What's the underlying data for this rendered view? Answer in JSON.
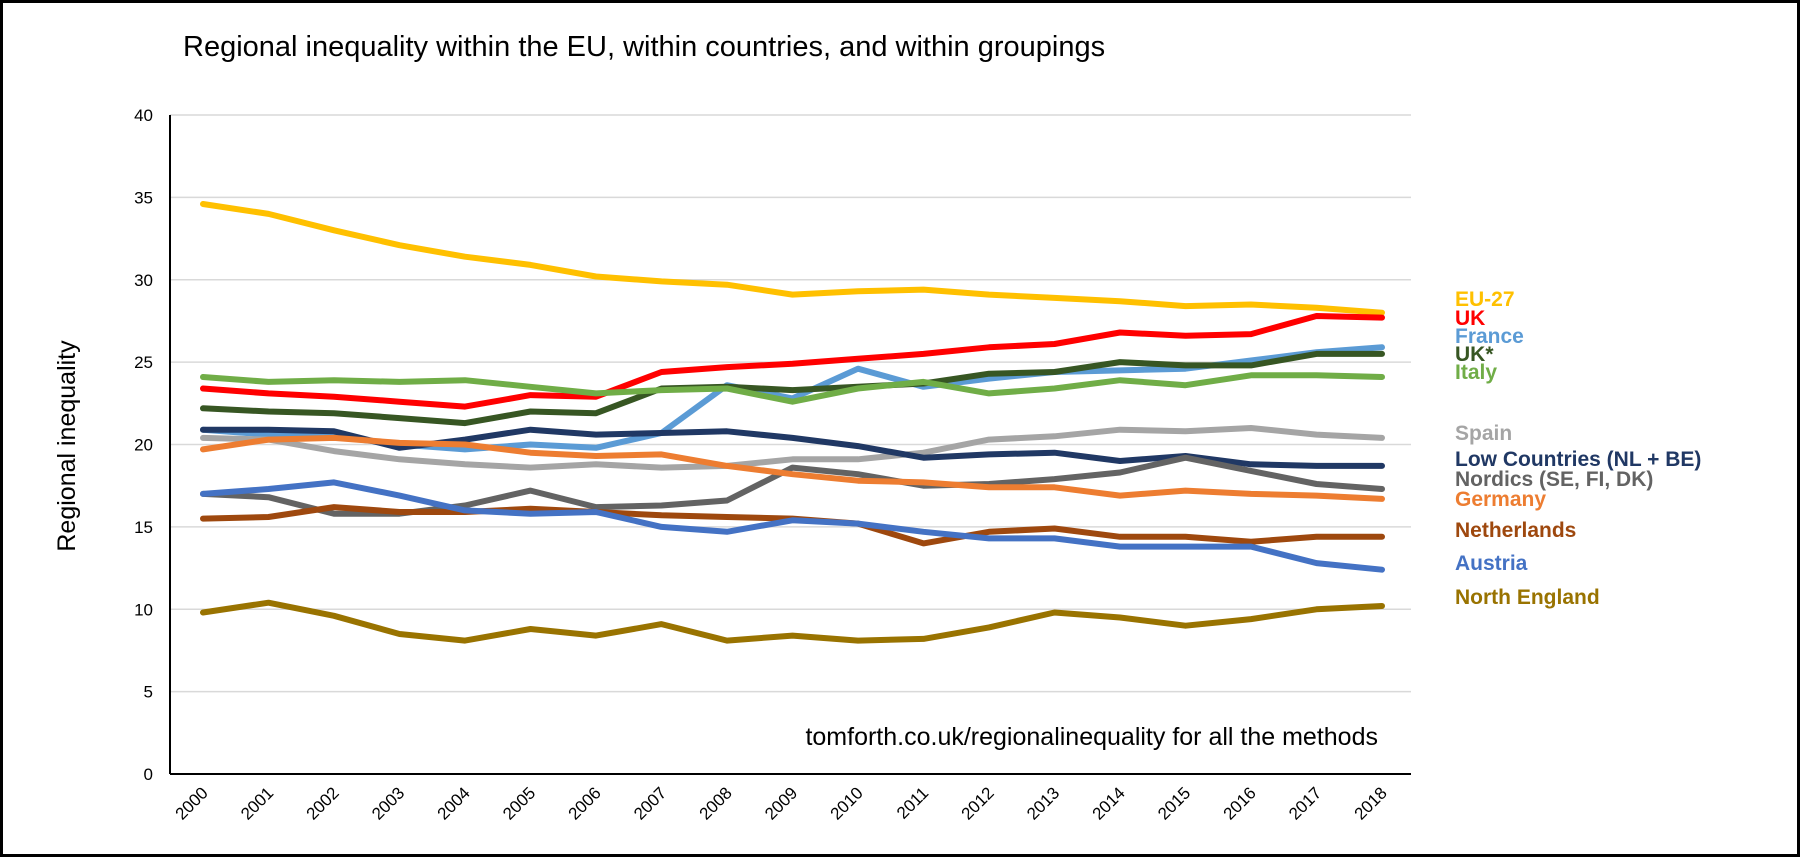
{
  "chart_data": {
    "type": "line",
    "title": "Regional inequality within the EU, within countries, and within groupings",
    "xlabel": "",
    "ylabel": "Regional inequality",
    "ylim": [
      0,
      40
    ],
    "yticks": [
      0,
      5,
      10,
      15,
      20,
      25,
      30,
      35,
      40
    ],
    "x": [
      "2000",
      "2001",
      "2002",
      "2003",
      "2004",
      "2005",
      "2006",
      "2007",
      "2008",
      "2009",
      "2010",
      "2011",
      "2012",
      "2013",
      "2014",
      "2015",
      "2016",
      "2017",
      "2018"
    ],
    "grid": true,
    "legend_position": "right",
    "annotation": "tomforth.co.uk/regionalinequality for all the methods",
    "series": [
      {
        "name": "EU-27",
        "color": "#FFC000",
        "values": [
          34.6,
          34.0,
          33.0,
          32.1,
          31.4,
          30.9,
          30.2,
          29.9,
          29.7,
          29.1,
          29.3,
          29.4,
          29.1,
          28.9,
          28.7,
          28.4,
          28.5,
          28.3,
          28.0
        ]
      },
      {
        "name": "UK",
        "color": "#FF0000",
        "values": [
          23.4,
          23.1,
          22.9,
          22.6,
          22.3,
          23.0,
          22.9,
          24.4,
          24.7,
          24.9,
          25.2,
          25.5,
          25.9,
          26.1,
          26.8,
          26.6,
          26.7,
          27.8,
          27.7
        ]
      },
      {
        "name": "France",
        "color": "#5B9BD5",
        "values": [
          20.9,
          20.6,
          20.5,
          20.0,
          19.7,
          20.0,
          19.8,
          20.7,
          23.6,
          22.8,
          24.6,
          23.5,
          24.0,
          24.4,
          24.5,
          24.6,
          25.1,
          25.6,
          25.9
        ]
      },
      {
        "name": "UK*",
        "color": "#375623",
        "values": [
          22.2,
          22.0,
          21.9,
          21.6,
          21.3,
          22.0,
          21.9,
          23.4,
          23.5,
          23.3,
          23.5,
          23.7,
          24.3,
          24.4,
          25.0,
          24.8,
          24.8,
          25.5,
          25.5
        ]
      },
      {
        "name": "Italy",
        "color": "#70AD47",
        "values": [
          24.1,
          23.8,
          23.9,
          23.8,
          23.9,
          23.5,
          23.1,
          23.3,
          23.4,
          22.6,
          23.4,
          23.8,
          23.1,
          23.4,
          23.9,
          23.6,
          24.2,
          24.2,
          24.1
        ]
      },
      {
        "name": "Spain",
        "color": "#A5A5A5",
        "values": [
          20.4,
          20.3,
          19.6,
          19.1,
          18.8,
          18.6,
          18.8,
          18.6,
          18.7,
          19.1,
          19.1,
          19.5,
          20.3,
          20.5,
          20.9,
          20.8,
          21.0,
          20.6,
          20.4
        ]
      },
      {
        "name": "Low Countries (NL + BE)",
        "color": "#203864",
        "values": [
          20.9,
          20.9,
          20.8,
          19.8,
          20.3,
          20.9,
          20.6,
          20.7,
          20.8,
          20.4,
          19.9,
          19.2,
          19.4,
          19.5,
          19.0,
          19.3,
          18.8,
          18.7,
          18.7
        ]
      },
      {
        "name": "Nordics (SE, FI, DK)",
        "color": "#636363",
        "values": [
          17.0,
          16.8,
          15.8,
          15.8,
          16.3,
          17.2,
          16.2,
          16.3,
          16.6,
          18.6,
          18.2,
          17.5,
          17.6,
          17.9,
          18.3,
          19.2,
          18.4,
          17.6,
          17.3
        ]
      },
      {
        "name": "Germany",
        "color": "#ED7D31",
        "values": [
          19.7,
          20.3,
          20.4,
          20.1,
          20.0,
          19.5,
          19.3,
          19.4,
          18.7,
          18.2,
          17.8,
          17.7,
          17.4,
          17.4,
          16.9,
          17.2,
          17.0,
          16.9,
          16.7
        ]
      },
      {
        "name": "Netherlands",
        "color": "#9E480E",
        "values": [
          15.5,
          15.6,
          16.2,
          15.9,
          15.9,
          16.1,
          15.9,
          15.7,
          15.6,
          15.5,
          15.2,
          14.0,
          14.7,
          14.9,
          14.4,
          14.4,
          14.1,
          14.4,
          14.4
        ]
      },
      {
        "name": "Austria",
        "color": "#4472C4",
        "values": [
          17.0,
          17.3,
          17.7,
          16.9,
          16.0,
          15.8,
          15.9,
          15.0,
          14.7,
          15.4,
          15.2,
          14.7,
          14.3,
          14.3,
          13.8,
          13.8,
          13.8,
          12.8,
          12.4
        ]
      },
      {
        "name": "North England",
        "color": "#997300",
        "values": [
          9.8,
          10.4,
          9.6,
          8.5,
          8.1,
          8.8,
          8.4,
          9.1,
          8.1,
          8.4,
          8.1,
          8.2,
          8.9,
          9.8,
          9.5,
          9.0,
          9.4,
          10.0,
          10.2
        ]
      }
    ],
    "legend": [
      {
        "name": "EU-27",
        "color": "#FFC000"
      },
      {
        "name": "UK",
        "color": "#FF0000"
      },
      {
        "name": "France",
        "color": "#5B9BD5"
      },
      {
        "name": "UK*",
        "color": "#375623"
      },
      {
        "name": "Italy",
        "color": "#70AD47"
      },
      {
        "name": "Spain",
        "color": "#A5A5A5"
      },
      {
        "name": "Low Countries (NL + BE)",
        "color": "#203864"
      },
      {
        "name": "Nordics (SE, FI, DK)",
        "color": "#636363"
      },
      {
        "name": "Germany",
        "color": "#ED7D31"
      },
      {
        "name": "Netherlands",
        "color": "#9E480E"
      },
      {
        "name": "Austria",
        "color": "#4472C4"
      },
      {
        "name": "North England",
        "color": "#997300"
      }
    ]
  }
}
